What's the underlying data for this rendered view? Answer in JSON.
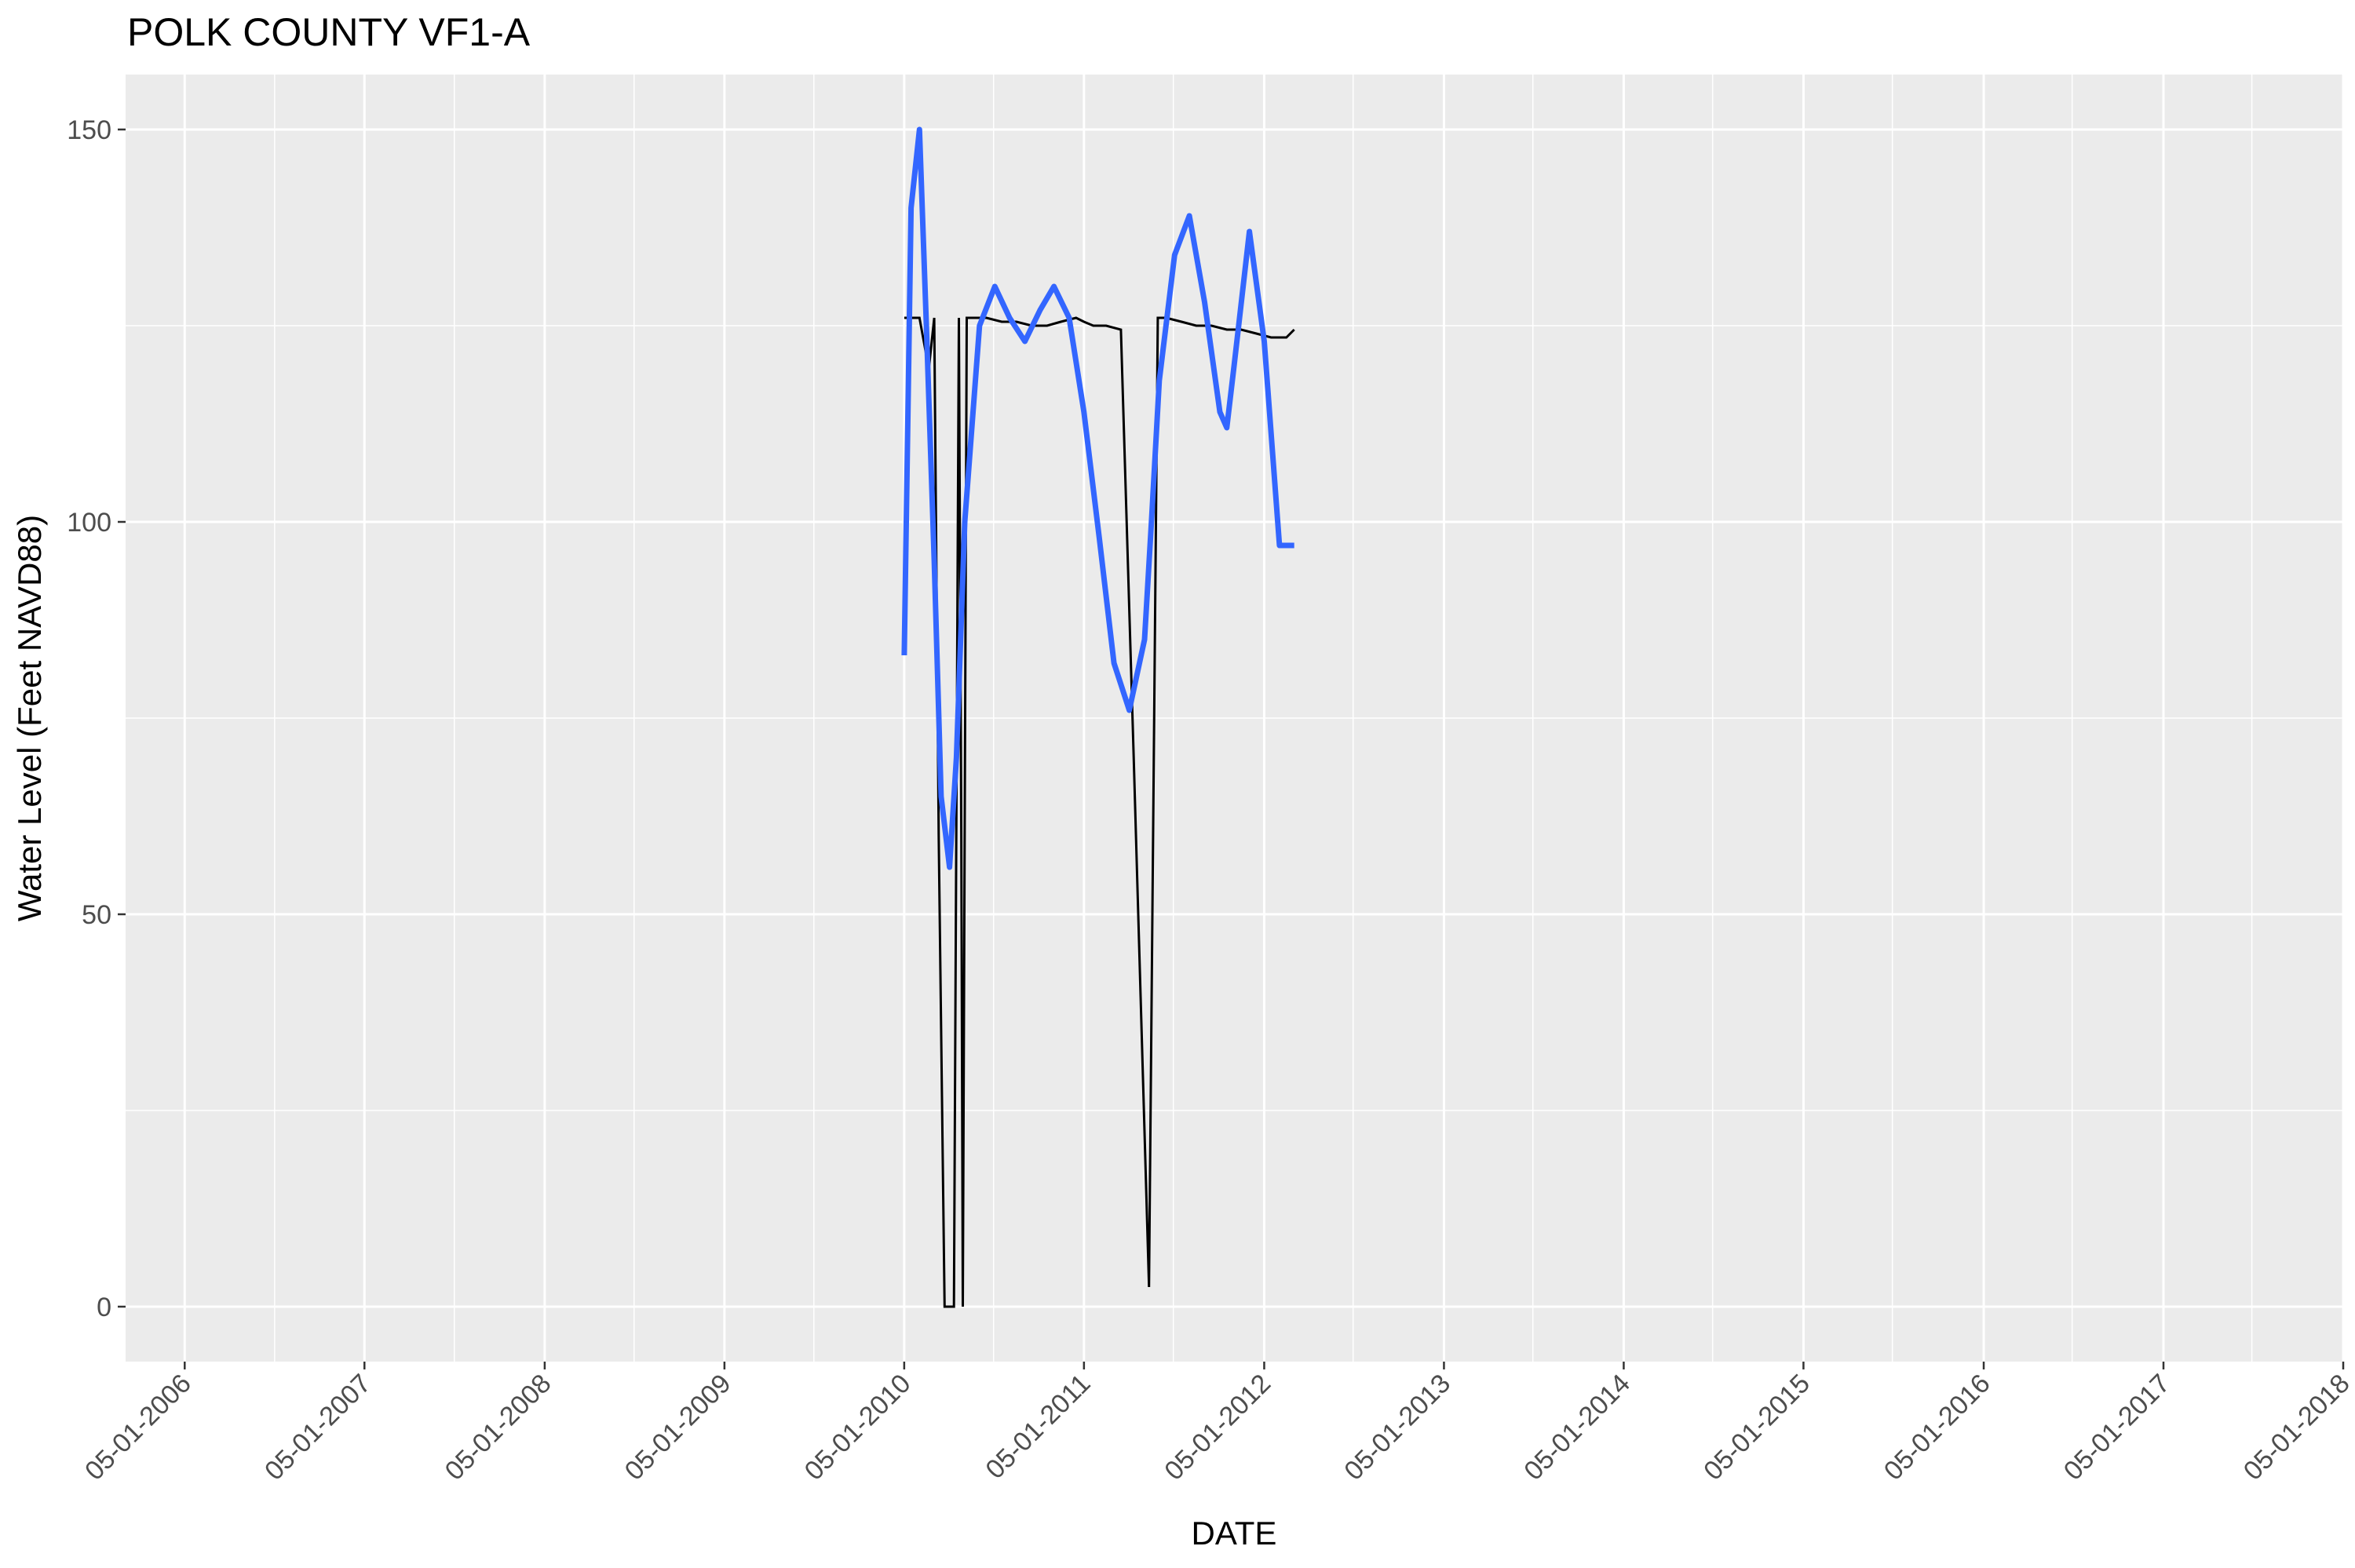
{
  "chart_data": {
    "type": "line",
    "title": "POLK COUNTY VF1-A",
    "xlabel": "DATE",
    "ylabel": "Water Level (Feet NAVD88)",
    "xlim": [
      "2006-01-01",
      "2018-05-01"
    ],
    "ylim": [
      -7,
      157
    ],
    "x_ticks": [
      "05-01-2006",
      "05-01-2007",
      "05-01-2008",
      "05-01-2009",
      "05-01-2010",
      "05-01-2011",
      "05-01-2012",
      "05-01-2013",
      "05-01-2014",
      "05-01-2015",
      "05-01-2016",
      "05-01-2017",
      "05-01-2018"
    ],
    "y_ticks": [
      0,
      50,
      100,
      150
    ],
    "grid": true,
    "legend": "none",
    "colors": {
      "panel": "#EBEBEB",
      "grid": "#FFFFFF",
      "observed": "#000000",
      "smooth": "#3366FF"
    },
    "series": [
      {
        "style": "observed",
        "x": [
          "2010-05-01",
          "2010-06-01",
          "2010-06-20",
          "2010-07-01",
          "2010-07-10",
          "2010-07-22",
          "2010-07-25",
          "2010-08-10",
          "2010-08-20",
          "2010-08-25",
          "2010-08-28",
          "2010-09-05",
          "2010-09-12",
          "2010-09-15",
          "2010-10-15",
          "2010-11-15",
          "2010-12-15",
          "2011-01-15",
          "2011-02-15",
          "2011-03-15",
          "2011-04-15",
          "2011-05-01",
          "2011-05-20",
          "2011-06-15",
          "2011-07-15",
          "2011-08-10",
          "2011-09-10",
          "2011-09-28",
          "2011-10-15",
          "2011-11-15",
          "2011-12-15",
          "2012-01-15",
          "2012-02-15",
          "2012-03-15",
          "2012-04-15",
          "2012-05-15",
          "2012-06-15",
          "2012-07-01"
        ],
        "y": [
          126.0,
          126.0,
          119.5,
          126.0,
          60.0,
          0.0,
          0.0,
          0.0,
          126.0,
          60.0,
          0.0,
          126.0,
          126.0,
          126.0,
          126.0,
          125.5,
          125.5,
          125.0,
          125.0,
          125.5,
          126.0,
          125.5,
          125.0,
          125.0,
          124.5,
          70.0,
          2.5,
          126.0,
          126.0,
          125.5,
          125.0,
          125.0,
          124.5,
          124.5,
          124.0,
          123.5,
          123.5,
          124.5
        ]
      },
      {
        "style": "smooth",
        "x": [
          "2010-05-01",
          "2010-05-15",
          "2010-06-01",
          "2010-06-15",
          "2010-07-01",
          "2010-07-15",
          "2010-08-01",
          "2010-08-15",
          "2010-09-01",
          "2010-10-01",
          "2010-11-01",
          "2010-12-01",
          "2011-01-01",
          "2011-02-01",
          "2011-03-01",
          "2011-04-01",
          "2011-05-01",
          "2011-06-01",
          "2011-07-01",
          "2011-08-01",
          "2011-09-01",
          "2011-09-15",
          "2011-10-01",
          "2011-11-01",
          "2011-12-01",
          "2012-01-01",
          "2012-02-01",
          "2012-02-15",
          "2012-03-01",
          "2012-04-01",
          "2012-05-01",
          "2012-06-01",
          "2012-06-15",
          "2012-07-01"
        ],
        "y": [
          83,
          140,
          150,
          125,
          95,
          65,
          56,
          70,
          100,
          125,
          130,
          126,
          123,
          127,
          130,
          126,
          114,
          98,
          82,
          76,
          85,
          100,
          118,
          134,
          139,
          128,
          114,
          112,
          120,
          137,
          123,
          97,
          97,
          97
        ]
      }
    ]
  }
}
